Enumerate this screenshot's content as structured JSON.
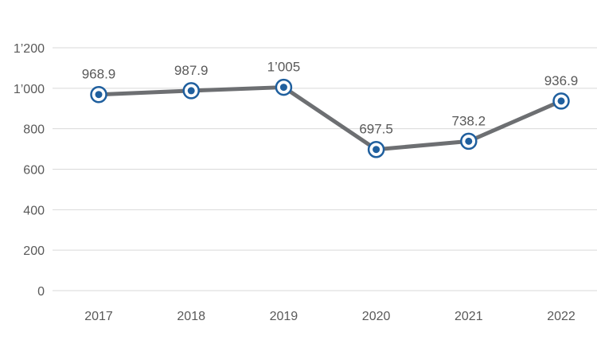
{
  "chart_data": {
    "type": "line",
    "title": "",
    "xlabel": "",
    "ylabel": "",
    "categories": [
      "2017",
      "2018",
      "2019",
      "2020",
      "2021",
      "2022"
    ],
    "series": [
      {
        "values": [
          968.9,
          987.9,
          1005,
          697.5,
          738.2,
          936.9
        ],
        "data_labels": [
          "968.9",
          "987.9",
          "1’005",
          "697.5",
          "738.2",
          "936.9"
        ]
      }
    ],
    "ylim": [
      0,
      1200
    ],
    "yticks": [
      0,
      200,
      400,
      600,
      800,
      1000,
      1200
    ],
    "ytick_labels": [
      "0",
      "200",
      "400",
      "600",
      "800",
      "1’000",
      "1’200"
    ],
    "grid": true,
    "legend": "none",
    "colors": {
      "line": "#6d6f72",
      "marker_ring": "#1f5f9e",
      "marker_fill": "#ffffff",
      "marker_dot": "#1f5f9e",
      "grid": "#d9d9d9",
      "text": "#595959"
    }
  }
}
